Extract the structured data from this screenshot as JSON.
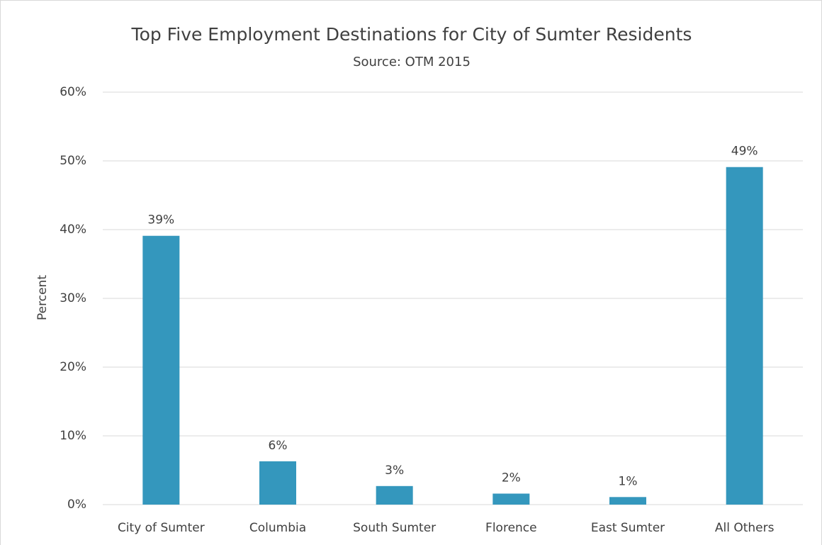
{
  "chart_data": {
    "type": "bar",
    "title": "Top Five Employment  Destinations for City of Sumter Residents",
    "subtitle": "Source: OTM 2015",
    "y_label": "Percent",
    "categories": [
      "City of Sumter",
      "Columbia",
      "South Sumter",
      "Florence",
      "East Sumter",
      "All Others"
    ],
    "values": [
      39.1,
      6.3,
      2.7,
      1.6,
      1.1,
      49.1
    ],
    "value_labels": [
      "39%",
      "6%",
      "3%",
      "2%",
      "1%",
      "49%"
    ],
    "color": "#3497bd",
    "ylim": [
      0,
      60
    ],
    "yticks": [
      {
        "value": 0,
        "label": "0%"
      },
      {
        "value": 10,
        "label": "10%"
      },
      {
        "value": 20,
        "label": "20%"
      },
      {
        "value": 30,
        "label": "30%"
      },
      {
        "value": 40,
        "label": "40%"
      },
      {
        "value": 50,
        "label": "50%"
      },
      {
        "value": 60,
        "label": "60%"
      }
    ],
    "grid": true
  }
}
